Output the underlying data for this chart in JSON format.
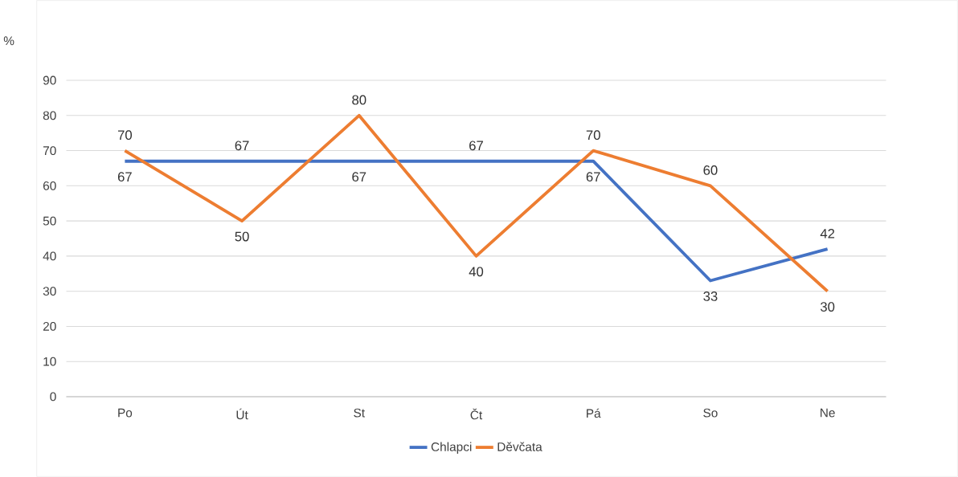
{
  "chart_data": {
    "type": "line",
    "ylabel": "%",
    "categories": [
      "Po",
      "Út",
      "St",
      "Čt",
      "Pá",
      "So",
      "Ne"
    ],
    "series": [
      {
        "name": "Chlapci",
        "color": "#4472c4",
        "values": [
          67,
          67,
          67,
          67,
          67,
          33,
          42
        ]
      },
      {
        "name": "Děvčata",
        "color": "#ed7d31",
        "values": [
          70,
          50,
          80,
          40,
          70,
          60,
          30
        ]
      }
    ],
    "ylim": [
      0,
      90
    ],
    "yticks": [
      0,
      10,
      20,
      30,
      40,
      50,
      60,
      70,
      80,
      90
    ],
    "grid": "y",
    "legend": "bottom",
    "data_labels": true
  }
}
